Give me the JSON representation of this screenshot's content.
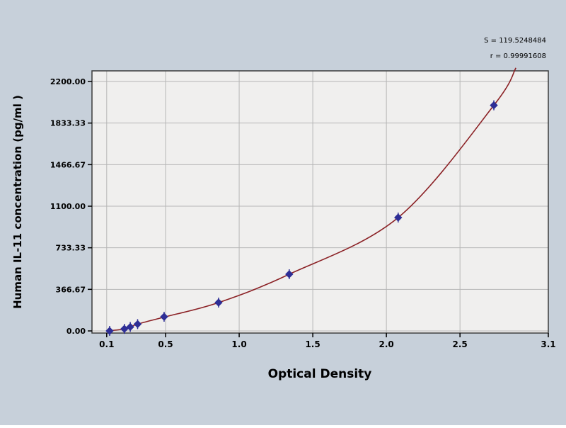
{
  "annotations": {
    "line1": "S = 119.5248484",
    "line2": "r = 0.99991608"
  },
  "chart_data": {
    "type": "scatter",
    "title": "",
    "xlabel": "Optical Density",
    "ylabel": "Human IL-11 concentration (pg/ml )",
    "xlim": [
      0,
      3.1
    ],
    "ylim": [
      0,
      2200
    ],
    "grid": true,
    "legend": "none",
    "x_ticks": [
      {
        "v": 0.1,
        "label": "0.1"
      },
      {
        "v": 0.5,
        "label": "0.5"
      },
      {
        "v": 1.0,
        "label": "1.0"
      },
      {
        "v": 1.5,
        "label": "1.5"
      },
      {
        "v": 2.0,
        "label": "2.0"
      },
      {
        "v": 2.5,
        "label": "2.5"
      },
      {
        "v": 3.1,
        "label": "3.1"
      }
    ],
    "y_ticks": [
      {
        "v": 0,
        "label": "0.00"
      },
      {
        "v": 366.67,
        "label": "366.67"
      },
      {
        "v": 733.33,
        "label": "733.33"
      },
      {
        "v": 1100.0,
        "label": "1100.00"
      },
      {
        "v": 1466.67,
        "label": "1466.67"
      },
      {
        "v": 1833.33,
        "label": "1833.33"
      },
      {
        "v": 2200.0,
        "label": "2200.00"
      }
    ],
    "series": [
      {
        "name": "standards",
        "points": [
          [
            0.12,
            0
          ],
          [
            0.22,
            18
          ],
          [
            0.26,
            35
          ],
          [
            0.31,
            60
          ],
          [
            0.49,
            125
          ],
          [
            0.86,
            250
          ],
          [
            1.34,
            500
          ],
          [
            2.08,
            1000
          ],
          [
            2.73,
            1990
          ]
        ]
      }
    ],
    "curve_points": [
      [
        0.1,
        0
      ],
      [
        0.22,
        18
      ],
      [
        0.31,
        60
      ],
      [
        0.49,
        122
      ],
      [
        0.86,
        250
      ],
      [
        1.34,
        500
      ],
      [
        2.08,
        1000
      ],
      [
        2.73,
        1990
      ],
      [
        2.88,
        2320
      ]
    ],
    "colors": {
      "outer_bg": "#c7d0da",
      "plot_bg": "#f0efee",
      "grid": "#b6b6b6",
      "border": "#3c3c3c",
      "curve": "#8b2125",
      "marker": "#2e2e96",
      "tick": "#000000"
    }
  }
}
